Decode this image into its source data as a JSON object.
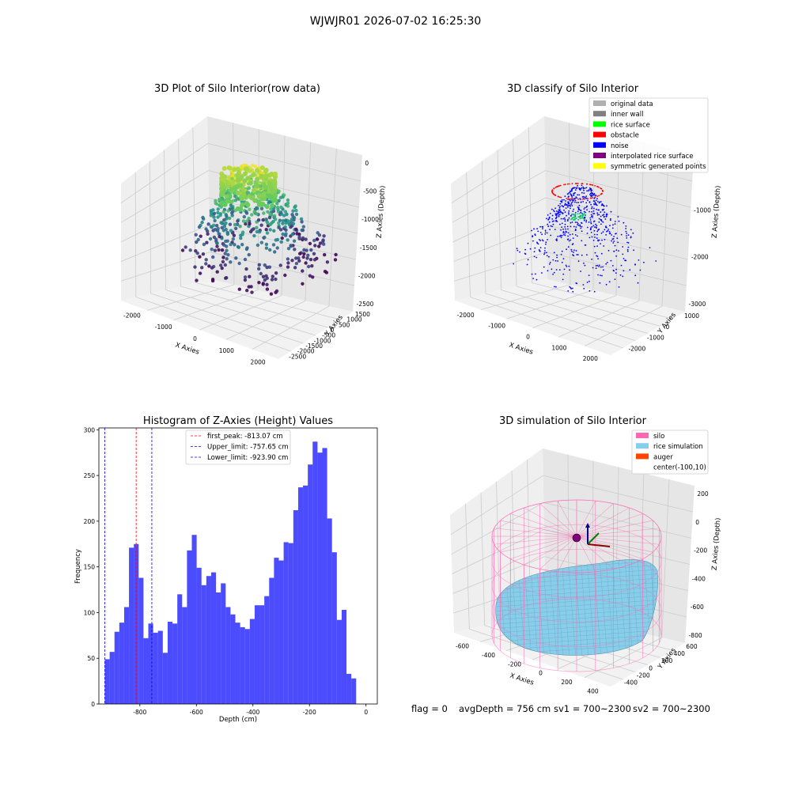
{
  "suptitle": "WJWJR01 2026-07-02 16:25:30",
  "footer": {
    "flag": "flag = 0",
    "avg_depth": "avgDepth = 756 cm",
    "sv1": "sv1 = 700~2300",
    "sv2": "sv2 = 700~2300"
  },
  "panel_raw": {
    "title": "3D Plot of Silo Interior(row data)",
    "xlabel": "X Axies",
    "ylabel": "Y Axies",
    "zlabel": "Z Axies (Depth)",
    "x_ticks": [
      "-2000",
      "-1000",
      "0",
      "1000",
      "2000"
    ],
    "y_ticks": [
      "1500",
      "1000",
      "500",
      "0",
      "-500",
      "-1000",
      "-1500",
      "-2000",
      "-2500"
    ],
    "z_ticks": [
      "0",
      "-500",
      "-1000",
      "-1500",
      "-2000",
      "-2500"
    ]
  },
  "panel_classify": {
    "title": "3D classify of Silo Interior",
    "xlabel": "X Axies",
    "ylabel": "Y Axies",
    "zlabel": "Z Axies (Depth)",
    "x_ticks": [
      "-2000",
      "-1000",
      "0",
      "1000",
      "2000"
    ],
    "y_ticks": [
      "1000",
      "0",
      "-1000",
      "-2000"
    ],
    "z_ticks": [
      "0",
      "-1000",
      "-2000",
      "-3000"
    ],
    "legend": [
      {
        "label": "original data",
        "color": "#b0b0b0"
      },
      {
        "label": "inner wall",
        "color": "#808080"
      },
      {
        "label": "rice surface",
        "color": "#00ff00"
      },
      {
        "label": "obstacle",
        "color": "#ff0000"
      },
      {
        "label": "noise",
        "color": "#0000ff"
      },
      {
        "label": "interpolated rice surface",
        "color": "#800080"
      },
      {
        "label": "symmetric generated points",
        "color": "#ffff00"
      }
    ]
  },
  "panel_sim": {
    "title": "3D simulation of Silo Interior",
    "xlabel": "X Axies",
    "ylabel": "Y Axies",
    "zlabel": "Z Axies (Depth)",
    "x_ticks": [
      "-600",
      "-400",
      "-200",
      "0",
      "200",
      "400"
    ],
    "y_ticks": [
      "600",
      "400",
      "200",
      "0",
      "-200",
      "-400"
    ],
    "z_ticks": [
      "200",
      "0",
      "-200",
      "-400",
      "-600",
      "-800"
    ],
    "legend": [
      {
        "label": "silo",
        "color": "#ff69b4"
      },
      {
        "label": "rice simulation",
        "color": "#87ceeb"
      },
      {
        "label": "auger",
        "color": "#ff4500"
      },
      {
        "label": "center(-100,10)",
        "color": ""
      }
    ]
  },
  "chart_data": {
    "type": "bar",
    "title": "Histogram of Z-Axies (Height) Values",
    "xlabel": "Depth (cm)",
    "ylabel": "Frequency",
    "xlim": [
      -945,
      40
    ],
    "ylim": [
      0,
      302
    ],
    "x_ticks": [
      -800,
      -600,
      -400,
      -200,
      0
    ],
    "y_ticks": [
      0,
      50,
      100,
      150,
      200,
      250,
      300
    ],
    "bar_color": "#0000ff",
    "bins_start": -924,
    "bin_width": 17.1,
    "values": [
      49,
      57,
      79,
      89,
      106,
      171,
      175,
      138,
      72,
      88,
      78,
      80,
      56,
      90,
      88,
      120,
      106,
      168,
      185,
      149,
      130,
      140,
      144,
      122,
      132,
      106,
      98,
      89,
      84,
      82,
      93,
      108,
      108,
      118,
      138,
      160,
      157,
      177,
      176,
      212,
      237,
      239,
      262,
      287,
      275,
      280,
      203,
      166,
      92,
      103,
      33,
      28
    ],
    "vlines": [
      {
        "label": "first_peak: -813.07 cm",
        "x": -813.07,
        "color": "#ff0000"
      },
      {
        "label": "Upper_limit: -757.65 cm",
        "x": -757.65,
        "color": "#0000ff"
      },
      {
        "label": "Lower_limit: -923.90 cm",
        "x": -923.9,
        "color": "#0000ff"
      }
    ]
  }
}
